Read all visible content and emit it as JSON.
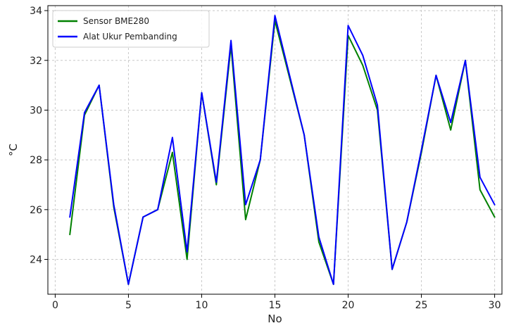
{
  "chart_data": {
    "type": "line",
    "title": "",
    "xlabel": "No",
    "ylabel": "°C",
    "xlim": [
      -0.5,
      30.5
    ],
    "ylim": [
      22.6,
      34.2
    ],
    "x_ticks": [
      0,
      5,
      10,
      15,
      20,
      25,
      30
    ],
    "y_ticks": [
      24,
      26,
      28,
      30,
      32,
      34
    ],
    "grid": true,
    "legend_position": "top-left",
    "x": [
      1,
      2,
      3,
      4,
      5,
      6,
      7,
      8,
      9,
      10,
      11,
      12,
      13,
      14,
      15,
      16,
      17,
      18,
      19,
      20,
      21,
      22,
      23,
      24,
      25,
      26,
      27,
      28,
      29,
      30
    ],
    "series": [
      {
        "name": "Sensor BME280",
        "color": "#008000",
        "values": [
          25.0,
          29.8,
          31.0,
          26.1,
          23.0,
          25.7,
          26.0,
          28.3,
          24.0,
          30.7,
          27.0,
          32.6,
          25.6,
          28.0,
          33.6,
          31.3,
          29.0,
          24.7,
          23.0,
          33.0,
          31.8,
          30.0,
          23.6,
          25.5,
          28.3,
          31.4,
          29.2,
          32.0,
          26.8,
          25.7
        ]
      },
      {
        "name": "Alat Ukur Pembanding",
        "color": "#0000ff",
        "values": [
          25.7,
          29.9,
          31.0,
          26.2,
          23.0,
          25.7,
          26.0,
          28.9,
          24.3,
          30.7,
          27.1,
          32.8,
          26.2,
          28.0,
          33.8,
          31.4,
          29.0,
          24.9,
          23.0,
          33.4,
          32.2,
          30.2,
          23.6,
          25.5,
          28.4,
          31.4,
          29.5,
          32.0,
          27.3,
          26.2
        ]
      }
    ]
  }
}
